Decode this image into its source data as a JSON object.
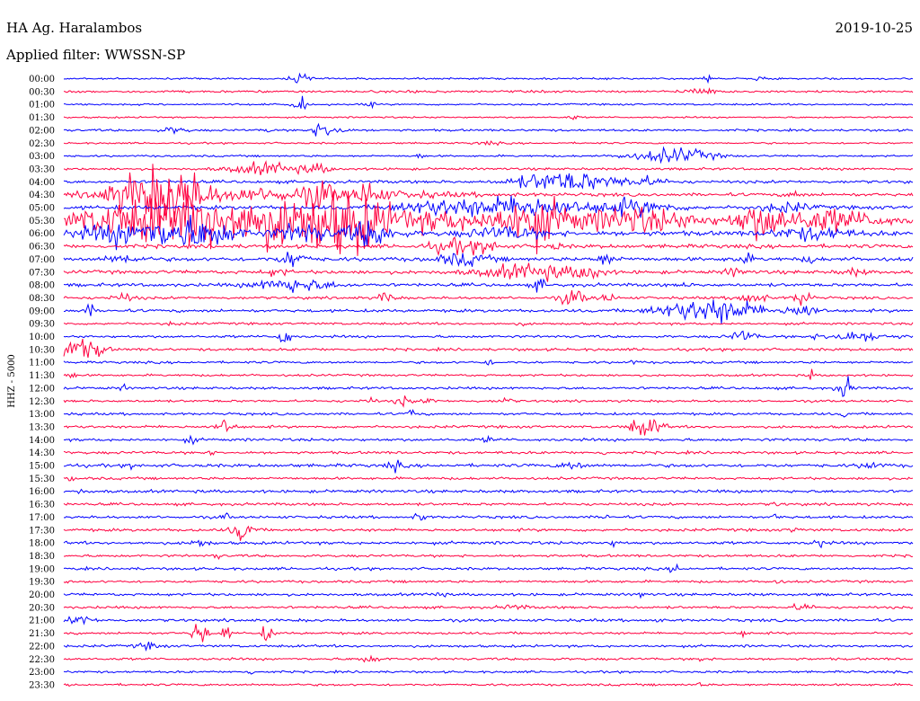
{
  "header": {
    "station": "HA Ag. Haralambos",
    "date": "2019-10-25",
    "filter": "Applied filter: WWSSN-SP"
  },
  "chart_data": {
    "type": "line",
    "title": "HA Ag. Haralambos",
    "ylabel": "HHZ  -  5000",
    "colors": {
      "even": "#0000ff",
      "odd": "#ff0040"
    },
    "rows": [
      "00:00",
      "00:30",
      "01:00",
      "01:30",
      "02:00",
      "02:30",
      "03:00",
      "03:30",
      "04:00",
      "04:30",
      "05:00",
      "05:30",
      "06:00",
      "06:30",
      "07:00",
      "07:30",
      "08:00",
      "08:30",
      "09:00",
      "09:30",
      "10:00",
      "10:30",
      "11:00",
      "11:30",
      "12:00",
      "12:30",
      "13:00",
      "13:30",
      "14:00",
      "14:30",
      "15:00",
      "15:30",
      "16:00",
      "16:30",
      "17:00",
      "17:30",
      "18:00",
      "18:30",
      "19:00",
      "19:30",
      "20:00",
      "20:30",
      "21:00",
      "21:30",
      "22:00",
      "22:30",
      "23:00",
      "23:30"
    ],
    "base_noise": [
      1.2,
      1.5,
      1.2,
      1.1,
      1.5,
      1.2,
      1.3,
      1.6,
      2.0,
      2.2,
      2.6,
      4.0,
      3.2,
      2.6,
      2.6,
      2.4,
      2.2,
      1.8,
      2.0,
      1.6,
      1.7,
      1.8,
      1.6,
      1.5,
      1.7,
      1.6,
      1.7,
      1.8,
      1.9,
      1.8,
      2.2,
      1.7,
      2.0,
      1.8,
      1.8,
      1.9,
      2.0,
      1.7,
      1.8,
      1.7,
      1.8,
      1.7,
      1.9,
      1.6,
      1.7,
      1.6,
      1.5,
      1.5
    ],
    "events": [
      [
        [
          0.28,
          7,
          0.008
        ],
        [
          0.76,
          5,
          0.005
        ],
        [
          0.82,
          3,
          0.004
        ]
      ],
      [
        [
          0.75,
          4,
          0.015
        ],
        [
          0.42,
          2,
          0.01
        ]
      ],
      [
        [
          0.27,
          3,
          0.005
        ],
        [
          0.28,
          8,
          0.005
        ],
        [
          0.36,
          4,
          0.004
        ]
      ],
      [
        [
          0.6,
          3,
          0.004
        ]
      ],
      [
        [
          0.13,
          4,
          0.01
        ],
        [
          0.31,
          11,
          0.012
        ],
        [
          0.24,
          3,
          0.003
        ]
      ],
      [
        [
          0.5,
          2,
          0.01
        ]
      ],
      [
        [
          0.42,
          4,
          0.003
        ],
        [
          0.72,
          10,
          0.03
        ],
        [
          0.66,
          3,
          0.005
        ]
      ],
      [
        [
          0.24,
          8,
          0.03
        ],
        [
          0.3,
          5,
          0.01
        ]
      ],
      [
        [
          0.6,
          13,
          0.03
        ],
        [
          0.55,
          6,
          0.02
        ],
        [
          0.68,
          6,
          0.02
        ]
      ],
      [
        [
          0.1,
          32,
          0.03
        ],
        [
          0.14,
          20,
          0.02
        ],
        [
          0.25,
          8,
          0.12
        ],
        [
          0.3,
          16,
          0.01
        ],
        [
          0.36,
          12,
          0.01
        ],
        [
          0.86,
          6,
          0.005
        ]
      ],
      [
        [
          0.45,
          10,
          0.04
        ],
        [
          0.55,
          14,
          0.04
        ],
        [
          0.67,
          10,
          0.03
        ],
        [
          0.85,
          6,
          0.02
        ]
      ],
      [
        [
          0.08,
          22,
          0.05
        ],
        [
          0.16,
          28,
          0.04
        ],
        [
          0.26,
          32,
          0.05
        ],
        [
          0.34,
          36,
          0.03
        ],
        [
          0.44,
          12,
          0.04
        ],
        [
          0.55,
          30,
          0.03
        ],
        [
          0.67,
          16,
          0.05
        ],
        [
          0.82,
          22,
          0.02
        ],
        [
          0.9,
          14,
          0.04
        ]
      ],
      [
        [
          0.08,
          16,
          0.04
        ],
        [
          0.16,
          20,
          0.03
        ],
        [
          0.28,
          14,
          0.02
        ],
        [
          0.36,
          18,
          0.02
        ],
        [
          0.52,
          8,
          0.03
        ],
        [
          0.88,
          8,
          0.03
        ]
      ],
      [
        [
          0.46,
          9,
          0.02
        ],
        [
          0.5,
          7,
          0.01
        ],
        [
          0.58,
          4,
          0.005
        ]
      ],
      [
        [
          0.07,
          5,
          0.015
        ],
        [
          0.27,
          12,
          0.01
        ],
        [
          0.47,
          8,
          0.02
        ],
        [
          0.64,
          8,
          0.008
        ],
        [
          0.8,
          6,
          0.008
        ],
        [
          0.88,
          5,
          0.005
        ]
      ],
      [
        [
          0.25,
          4,
          0.01
        ],
        [
          0.55,
          10,
          0.04
        ],
        [
          0.62,
          9,
          0.01
        ],
        [
          0.79,
          6,
          0.007
        ],
        [
          0.93,
          4,
          0.01
        ]
      ],
      [
        [
          0.27,
          9,
          0.03
        ],
        [
          0.56,
          8,
          0.005
        ],
        [
          0.73,
          4,
          0.003
        ]
      ],
      [
        [
          0.07,
          5,
          0.01
        ],
        [
          0.38,
          12,
          0.005
        ],
        [
          0.6,
          11,
          0.01
        ],
        [
          0.64,
          6,
          0.006
        ],
        [
          0.81,
          8,
          0.012
        ],
        [
          0.87,
          14,
          0.006
        ]
      ],
      [
        [
          0.03,
          12,
          0.003
        ],
        [
          0.73,
          8,
          0.03
        ],
        [
          0.78,
          14,
          0.03
        ],
        [
          0.87,
          10,
          0.012
        ]
      ],
      [
        [
          0.13,
          3,
          0.005
        ],
        [
          0.54,
          3,
          0.003
        ]
      ],
      [
        [
          0.26,
          20,
          0.004
        ],
        [
          0.8,
          8,
          0.01
        ],
        [
          0.93,
          6,
          0.03
        ]
      ],
      [
        [
          0.01,
          16,
          0.015
        ],
        [
          0.04,
          8,
          0.008
        ]
      ],
      [
        [
          0.5,
          5,
          0.003
        ],
        [
          0.67,
          3,
          0.003
        ]
      ],
      [
        [
          0.01,
          5,
          0.003
        ],
        [
          0.88,
          12,
          0.002
        ]
      ],
      [
        [
          0.07,
          4,
          0.003
        ],
        [
          0.92,
          14,
          0.006
        ]
      ],
      [
        [
          0.36,
          4,
          0.005
        ],
        [
          0.4,
          7,
          0.006
        ],
        [
          0.43,
          5,
          0.004
        ],
        [
          0.52,
          5,
          0.005
        ]
      ],
      [
        [
          0.41,
          8,
          0.003
        ],
        [
          0.92,
          6,
          0.002
        ]
      ],
      [
        [
          0.19,
          10,
          0.007
        ],
        [
          0.68,
          12,
          0.01
        ],
        [
          0.7,
          8,
          0.006
        ]
      ],
      [
        [
          0.15,
          6,
          0.004
        ],
        [
          0.5,
          6,
          0.003
        ]
      ],
      [
        [
          0.17,
          6,
          0.003
        ],
        [
          0.64,
          5,
          0.003
        ]
      ],
      [
        [
          0.08,
          3,
          0.003
        ],
        [
          0.39,
          6,
          0.006
        ],
        [
          0.6,
          5,
          0.01
        ],
        [
          0.95,
          5,
          0.008
        ]
      ],
      [
        [
          0.01,
          4,
          0.003
        ]
      ],
      [
        [
          0.02,
          3,
          0.003
        ]
      ],
      [
        [
          0.84,
          4,
          0.003
        ]
      ],
      [
        [
          0.19,
          6,
          0.003
        ],
        [
          0.42,
          9,
          0.004
        ],
        [
          0.64,
          4,
          0.003
        ],
        [
          0.84,
          5,
          0.003
        ]
      ],
      [
        [
          0.21,
          14,
          0.008
        ],
        [
          0.86,
          10,
          0.002
        ]
      ],
      [
        [
          0.16,
          5,
          0.007
        ],
        [
          0.65,
          5,
          0.004
        ],
        [
          0.89,
          7,
          0.004
        ]
      ],
      [
        [
          0.18,
          4,
          0.003
        ]
      ],
      [
        [
          0.72,
          6,
          0.004
        ]
      ],
      [
        [
          0.84,
          4,
          0.003
        ]
      ],
      [
        [
          0.44,
          5,
          0.005
        ],
        [
          0.68,
          7,
          0.002
        ]
      ],
      [
        [
          0.53,
          3,
          0.01
        ],
        [
          0.87,
          5,
          0.008
        ]
      ],
      [
        [
          0.02,
          6,
          0.01
        ],
        [
          0.7,
          6,
          0.002
        ]
      ],
      [
        [
          0.16,
          26,
          0.005
        ],
        [
          0.19,
          18,
          0.003
        ],
        [
          0.24,
          16,
          0.004
        ],
        [
          0.8,
          4,
          0.003
        ]
      ],
      [
        [
          0.1,
          4,
          0.01
        ]
      ],
      [
        [
          0.36,
          4,
          0.01
        ],
        [
          0.75,
          5,
          0.003
        ]
      ],
      [
        [
          0.22,
          3,
          0.003
        ]
      ],
      [
        [
          0.75,
          3,
          0.003
        ]
      ]
    ]
  }
}
